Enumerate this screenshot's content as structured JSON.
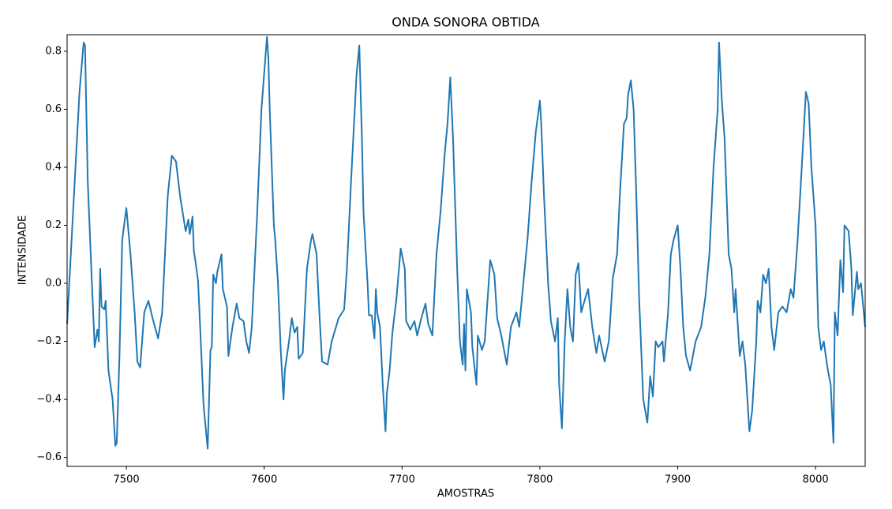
{
  "chart_data": {
    "type": "line",
    "title": "ONDA SONORA OBTIDA",
    "x_label": "AMOSTRAS",
    "y_label": "INTENSIDADE",
    "x": [
      7457,
      7466,
      7469,
      7470,
      7472,
      7475,
      7477,
      7479,
      7480,
      7481,
      7482,
      7484,
      7485,
      7487,
      7490,
      7492,
      7493,
      7495,
      7497,
      7500,
      7503,
      7506,
      7508,
      7510,
      7513,
      7516,
      7519,
      7523,
      7526,
      7530,
      7533,
      7536,
      7539,
      7543,
      7545,
      7546,
      7548,
      7549,
      7550,
      7552,
      7554,
      7556,
      7559,
      7561,
      7562,
      7563,
      7565,
      7566,
      7569,
      7570,
      7573,
      7574,
      7577,
      7580,
      7582,
      7585,
      7587,
      7589,
      7591,
      7595,
      7598,
      7602,
      7603,
      7604,
      7607,
      7608,
      7610,
      7612,
      7614,
      7615,
      7618,
      7620,
      7622,
      7624,
      7625,
      7628,
      7631,
      7634,
      7635,
      7638,
      7640,
      7642,
      7646,
      7649,
      7654,
      7658,
      7660,
      7663,
      7667,
      7669,
      7671,
      7672,
      7675,
      7676,
      7678,
      7680,
      7681,
      7682,
      7684,
      7686,
      7688,
      7689,
      7691,
      7693,
      7696,
      7699,
      7702,
      7703,
      7706,
      7709,
      7711,
      7714,
      7717,
      7719,
      7722,
      7725,
      7728,
      7731,
      7733,
      7735,
      7737,
      7740,
      7742,
      7744,
      7745,
      7746,
      7747,
      7750,
      7751,
      7754,
      7755,
      7758,
      7760,
      7764,
      7767,
      7769,
      7772,
      7776,
      7779,
      7783,
      7785,
      7788,
      7791,
      7794,
      7797,
      7800,
      7801,
      7803,
      7806,
      7808,
      7811,
      7813,
      7814,
      7816,
      7818,
      7820,
      7822,
      7824,
      7826,
      7828,
      7830,
      7833,
      7835,
      7838,
      7841,
      7843,
      7847,
      7850,
      7853,
      7856,
      7858,
      7861,
      7863,
      7864,
      7866,
      7868,
      7870,
      7872,
      7875,
      7878,
      7880,
      7882,
      7884,
      7886,
      7889,
      7890,
      7893,
      7895,
      7897,
      7900,
      7902,
      7904,
      7906,
      7909,
      7913,
      7917,
      7920,
      7923,
      7926,
      7929,
      7930,
      7932,
      7934,
      7937,
      7939,
      7941,
      7942,
      7945,
      7947,
      7949,
      7952,
      7954,
      7957,
      7958,
      7960,
      7962,
      7964,
      7966,
      7968,
      7970,
      7973,
      7976,
      7979,
      7982,
      7984,
      7987,
      7990,
      7993,
      7995,
      7997,
      8000,
      8002,
      8004,
      8006,
      8008,
      8009,
      8011,
      8013,
      8014,
      8016,
      8018,
      8020,
      8021,
      8024,
      8026,
      8027,
      8030,
      8031,
      8033,
      8036
    ],
    "series": [
      {
        "color": "#1f77b4",
        "values": [
          -0.14,
          0.66,
          0.83,
          0.82,
          0.35,
          0.0,
          -0.22,
          -0.16,
          -0.2,
          0.05,
          -0.08,
          -0.09,
          -0.06,
          -0.3,
          -0.4,
          -0.56,
          -0.55,
          -0.25,
          0.15,
          0.26,
          0.1,
          -0.1,
          -0.27,
          -0.29,
          -0.1,
          -0.06,
          -0.12,
          -0.19,
          -0.1,
          0.3,
          0.44,
          0.42,
          0.3,
          0.18,
          0.22,
          0.17,
          0.23,
          0.11,
          0.08,
          0.01,
          -0.2,
          -0.42,
          -0.57,
          -0.23,
          -0.22,
          0.03,
          0.0,
          0.04,
          0.1,
          -0.02,
          -0.08,
          -0.25,
          -0.15,
          -0.07,
          -0.12,
          -0.13,
          -0.2,
          -0.24,
          -0.15,
          0.25,
          0.6,
          0.85,
          0.78,
          0.6,
          0.2,
          0.15,
          0.0,
          -0.23,
          -0.4,
          -0.3,
          -0.2,
          -0.12,
          -0.17,
          -0.15,
          -0.26,
          -0.24,
          0.05,
          0.15,
          0.17,
          0.1,
          -0.1,
          -0.27,
          -0.28,
          -0.2,
          -0.12,
          -0.09,
          0.05,
          0.35,
          0.72,
          0.82,
          0.48,
          0.25,
          0.0,
          -0.11,
          -0.11,
          -0.19,
          -0.02,
          -0.1,
          -0.15,
          -0.35,
          -0.51,
          -0.38,
          -0.3,
          -0.17,
          -0.05,
          0.12,
          0.05,
          -0.13,
          -0.16,
          -0.13,
          -0.18,
          -0.12,
          -0.07,
          -0.14,
          -0.18,
          0.1,
          0.25,
          0.45,
          0.55,
          0.71,
          0.5,
          0.05,
          -0.2,
          -0.28,
          -0.14,
          -0.3,
          -0.02,
          -0.1,
          -0.22,
          -0.35,
          -0.18,
          -0.23,
          -0.2,
          0.08,
          0.03,
          -0.12,
          -0.18,
          -0.28,
          -0.15,
          -0.1,
          -0.15,
          0.0,
          0.15,
          0.35,
          0.52,
          0.63,
          0.55,
          0.3,
          0.0,
          -0.13,
          -0.2,
          -0.12,
          -0.35,
          -0.5,
          -0.2,
          -0.02,
          -0.15,
          -0.2,
          0.03,
          0.07,
          -0.1,
          -0.05,
          -0.02,
          -0.15,
          -0.24,
          -0.18,
          -0.27,
          -0.2,
          0.02,
          0.1,
          0.3,
          0.55,
          0.57,
          0.65,
          0.7,
          0.6,
          0.3,
          -0.05,
          -0.4,
          -0.48,
          -0.32,
          -0.39,
          -0.2,
          -0.22,
          -0.2,
          -0.27,
          -0.1,
          0.1,
          0.15,
          0.2,
          0.05,
          -0.15,
          -0.25,
          -0.3,
          -0.2,
          -0.15,
          -0.05,
          0.1,
          0.4,
          0.6,
          0.83,
          0.63,
          0.5,
          0.1,
          0.05,
          -0.1,
          -0.02,
          -0.25,
          -0.2,
          -0.28,
          -0.51,
          -0.44,
          -0.2,
          -0.06,
          -0.1,
          0.03,
          0.0,
          0.05,
          -0.15,
          -0.23,
          -0.1,
          -0.08,
          -0.1,
          -0.02,
          -0.05,
          0.15,
          0.4,
          0.66,
          0.62,
          0.4,
          0.2,
          -0.15,
          -0.23,
          -0.2,
          -0.27,
          -0.3,
          -0.35,
          -0.55,
          -0.1,
          -0.18,
          0.08,
          -0.03,
          0.2,
          0.18,
          0.05,
          -0.11,
          0.04,
          -0.02,
          0.0,
          -0.15
        ]
      }
    ],
    "xlim": [
      7457,
      8036
    ],
    "ylim": [
      -0.631,
      0.857
    ],
    "xticks": [
      7500,
      7600,
      7700,
      7800,
      7900,
      8000
    ],
    "yticks": [
      {
        "value": -0.6,
        "label": "−0.6"
      },
      {
        "value": -0.4,
        "label": "−0.4"
      },
      {
        "value": -0.2,
        "label": "−0.2"
      },
      {
        "value": 0.0,
        "label": "0.0"
      },
      {
        "value": 0.2,
        "label": "0.2"
      },
      {
        "value": 0.4,
        "label": "0.4"
      },
      {
        "value": 0.6,
        "label": "0.6"
      },
      {
        "value": 0.8,
        "label": "0.8"
      }
    ]
  }
}
